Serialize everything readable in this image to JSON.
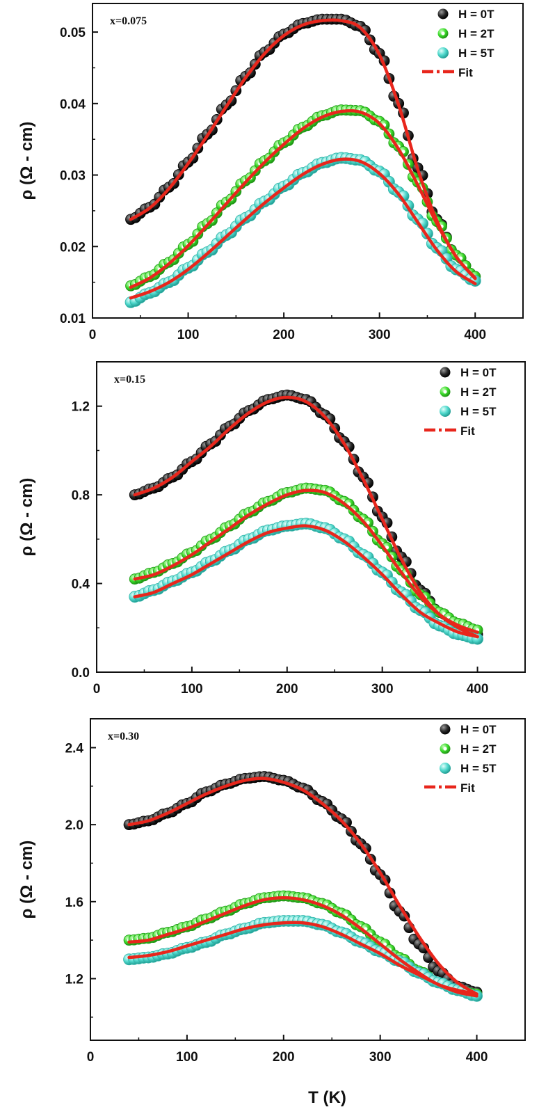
{
  "chart_data": [
    {
      "type": "scatter",
      "panel_label": "x=0.075",
      "ylabel": "ρ (Ω - cm)",
      "xlabel": "",
      "xlim": [
        0,
        450
      ],
      "ylim": [
        0.01,
        0.054
      ],
      "xticks": [
        "0",
        "100",
        "200",
        "300",
        "400"
      ],
      "xtick_values": [
        0,
        100,
        200,
        300,
        400
      ],
      "yticks": [
        "0.01",
        "0.02",
        "0.03",
        "0.04",
        "0.05"
      ],
      "ytick_values": [
        0.01,
        0.02,
        0.03,
        0.04,
        0.05
      ],
      "legend_position": "top-right",
      "series": [
        {
          "name": "H = 0T",
          "color": "#222222",
          "x": [
            40,
            60,
            80,
            100,
            120,
            140,
            160,
            180,
            200,
            220,
            240,
            260,
            280,
            300,
            320,
            340,
            360,
            380,
            400
          ],
          "y": [
            0.0238,
            0.0255,
            0.0283,
            0.0318,
            0.0357,
            0.0398,
            0.0438,
            0.0472,
            0.0497,
            0.0512,
            0.0518,
            0.0518,
            0.0508,
            0.047,
            0.04,
            0.031,
            0.0238,
            0.0188,
            0.0158
          ]
        },
        {
          "name": "H = 2T",
          "color": "#3ddc2c",
          "x": [
            40,
            60,
            80,
            100,
            120,
            140,
            160,
            180,
            200,
            220,
            240,
            260,
            280,
            300,
            320,
            340,
            360,
            380,
            400
          ],
          "y": [
            0.0145,
            0.0158,
            0.0178,
            0.0203,
            0.0232,
            0.0262,
            0.0292,
            0.032,
            0.0345,
            0.0367,
            0.0383,
            0.0391,
            0.039,
            0.0375,
            0.034,
            0.029,
            0.0235,
            0.0188,
            0.0158
          ]
        },
        {
          "name": "H = 5T",
          "color": "#4fd8cc",
          "x": [
            40,
            60,
            80,
            100,
            120,
            140,
            160,
            180,
            200,
            220,
            240,
            260,
            280,
            300,
            320,
            340,
            360,
            380,
            400
          ],
          "y": [
            0.0122,
            0.0135,
            0.015,
            0.017,
            0.0192,
            0.0216,
            0.024,
            0.0263,
            0.0284,
            0.0303,
            0.0317,
            0.0324,
            0.0321,
            0.0305,
            0.0276,
            0.0238,
            0.0198,
            0.0168,
            0.0152
          ]
        },
        {
          "name": "Fit",
          "color": "#e8261c",
          "line": true,
          "x": [
            40,
            60,
            80,
            100,
            120,
            140,
            160,
            180,
            200,
            220,
            240,
            260,
            280,
            300,
            320,
            340,
            360,
            380,
            400
          ],
          "y": [
            0.0238,
            0.0254,
            0.0281,
            0.0316,
            0.0355,
            0.0396,
            0.0436,
            0.047,
            0.0495,
            0.051,
            0.0516,
            0.0516,
            0.0506,
            0.0468,
            0.0398,
            0.0308,
            0.0236,
            0.0186,
            0.0156
          ]
        },
        {
          "name": "Fit (2T)",
          "color": "#e8261c",
          "line": true,
          "hidden_legend": true,
          "x": [
            40,
            60,
            80,
            100,
            120,
            140,
            160,
            180,
            200,
            220,
            240,
            260,
            280,
            300,
            320,
            340,
            360,
            380,
            400
          ],
          "y": [
            0.0143,
            0.0156,
            0.0176,
            0.0201,
            0.023,
            0.026,
            0.029,
            0.0318,
            0.0343,
            0.0365,
            0.0381,
            0.0389,
            0.0388,
            0.0372,
            0.0336,
            0.0286,
            0.0232,
            0.0186,
            0.0155
          ]
        },
        {
          "name": "Fit (5T)",
          "color": "#e8261c",
          "line": true,
          "hidden_legend": true,
          "x": [
            40,
            60,
            80,
            100,
            120,
            140,
            160,
            180,
            200,
            220,
            240,
            260,
            280,
            300,
            320,
            340,
            360,
            380,
            400
          ],
          "y": [
            0.0128,
            0.0137,
            0.015,
            0.0168,
            0.019,
            0.0214,
            0.0238,
            0.0261,
            0.0282,
            0.0301,
            0.0315,
            0.0322,
            0.0319,
            0.0302,
            0.0273,
            0.0234,
            0.0195,
            0.0165,
            0.0148
          ]
        }
      ]
    },
    {
      "type": "scatter",
      "panel_label": "x=0.15",
      "ylabel": "ρ (Ω - cm)",
      "xlabel": "",
      "xlim": [
        0,
        450
      ],
      "ylim": [
        0.0,
        1.4
      ],
      "xticks": [
        "0",
        "100",
        "200",
        "300",
        "400"
      ],
      "xtick_values": [
        0,
        100,
        200,
        300,
        400
      ],
      "yticks": [
        "0.0",
        "0.4",
        "0.8",
        "1.2"
      ],
      "ytick_values": [
        0.0,
        0.4,
        0.8,
        1.2
      ],
      "legend_position": "top-right",
      "series": [
        {
          "name": "H = 0T",
          "color": "#222222",
          "x": [
            40,
            60,
            80,
            100,
            120,
            140,
            160,
            180,
            200,
            220,
            240,
            260,
            280,
            300,
            320,
            340,
            360,
            380,
            400
          ],
          "y": [
            0.8,
            0.83,
            0.88,
            0.95,
            1.03,
            1.11,
            1.18,
            1.23,
            1.25,
            1.23,
            1.16,
            1.04,
            0.88,
            0.7,
            0.52,
            0.37,
            0.27,
            0.21,
            0.17
          ]
        },
        {
          "name": "H = 2T",
          "color": "#3ddc2c",
          "x": [
            40,
            60,
            80,
            100,
            120,
            140,
            160,
            180,
            200,
            220,
            240,
            260,
            280,
            300,
            320,
            340,
            360,
            380,
            400
          ],
          "y": [
            0.42,
            0.45,
            0.49,
            0.54,
            0.6,
            0.66,
            0.72,
            0.77,
            0.81,
            0.83,
            0.82,
            0.77,
            0.69,
            0.58,
            0.46,
            0.35,
            0.27,
            0.22,
            0.19
          ]
        },
        {
          "name": "H = 5T",
          "color": "#4fd8cc",
          "x": [
            40,
            60,
            80,
            100,
            120,
            140,
            160,
            180,
            200,
            220,
            240,
            260,
            280,
            300,
            320,
            340,
            360,
            380,
            400
          ],
          "y": [
            0.34,
            0.37,
            0.41,
            0.45,
            0.5,
            0.55,
            0.6,
            0.64,
            0.66,
            0.67,
            0.65,
            0.6,
            0.53,
            0.45,
            0.36,
            0.28,
            0.21,
            0.17,
            0.15
          ]
        },
        {
          "name": "Fit",
          "color": "#e8261c",
          "line": true,
          "x": [
            40,
            60,
            80,
            100,
            120,
            140,
            160,
            180,
            200,
            220,
            240,
            260,
            280,
            300,
            320,
            340,
            360,
            380,
            400
          ],
          "y": [
            0.8,
            0.83,
            0.88,
            0.95,
            1.02,
            1.1,
            1.17,
            1.22,
            1.24,
            1.22,
            1.15,
            1.03,
            0.87,
            0.69,
            0.51,
            0.36,
            0.26,
            0.2,
            0.16
          ]
        },
        {
          "name": "Fit (2T)",
          "color": "#e8261c",
          "line": true,
          "hidden_legend": true,
          "x": [
            40,
            60,
            80,
            100,
            120,
            140,
            160,
            180,
            200,
            220,
            240,
            260,
            280,
            300,
            320,
            340,
            360,
            380,
            400
          ],
          "y": [
            0.42,
            0.44,
            0.48,
            0.53,
            0.59,
            0.65,
            0.71,
            0.76,
            0.8,
            0.82,
            0.81,
            0.76,
            0.68,
            0.57,
            0.45,
            0.34,
            0.26,
            0.21,
            0.18
          ]
        },
        {
          "name": "Fit (5T)",
          "color": "#e8261c",
          "line": true,
          "hidden_legend": true,
          "x": [
            40,
            60,
            80,
            100,
            120,
            140,
            160,
            180,
            200,
            220,
            240,
            260,
            280,
            300,
            320,
            340,
            360,
            380,
            400
          ],
          "y": [
            0.34,
            0.36,
            0.4,
            0.44,
            0.49,
            0.54,
            0.59,
            0.63,
            0.65,
            0.66,
            0.64,
            0.59,
            0.52,
            0.44,
            0.35,
            0.27,
            0.22,
            0.18,
            0.16
          ]
        }
      ]
    },
    {
      "type": "scatter",
      "panel_label": "x=0.30",
      "ylabel": "ρ (Ω - cm)",
      "xlabel": "T (K)",
      "xlim": [
        0,
        450
      ],
      "ylim": [
        0.88,
        2.55
      ],
      "xticks": [
        "0",
        "100",
        "200",
        "300",
        "400"
      ],
      "xtick_values": [
        0,
        100,
        200,
        300,
        400
      ],
      "yticks": [
        "1.2",
        "1.6",
        "2.0",
        "2.4"
      ],
      "ytick_values": [
        1.2,
        1.6,
        2.0,
        2.4
      ],
      "legend_position": "top-right",
      "series": [
        {
          "name": "H = 0T",
          "color": "#222222",
          "x": [
            40,
            60,
            80,
            100,
            120,
            140,
            160,
            180,
            200,
            220,
            240,
            260,
            280,
            300,
            320,
            340,
            360,
            380,
            400
          ],
          "y": [
            2.0,
            2.02,
            2.06,
            2.11,
            2.17,
            2.21,
            2.24,
            2.25,
            2.23,
            2.19,
            2.12,
            2.03,
            1.9,
            1.74,
            1.55,
            1.38,
            1.24,
            1.16,
            1.13
          ]
        },
        {
          "name": "H = 2T",
          "color": "#3ddc2c",
          "x": [
            40,
            60,
            80,
            100,
            120,
            140,
            160,
            180,
            200,
            220,
            240,
            260,
            280,
            300,
            320,
            340,
            360,
            380,
            400
          ],
          "y": [
            1.4,
            1.41,
            1.44,
            1.47,
            1.51,
            1.55,
            1.59,
            1.62,
            1.63,
            1.62,
            1.59,
            1.54,
            1.47,
            1.39,
            1.31,
            1.24,
            1.18,
            1.14,
            1.12
          ]
        },
        {
          "name": "H = 5T",
          "color": "#4fd8cc",
          "x": [
            40,
            60,
            80,
            100,
            120,
            140,
            160,
            180,
            200,
            220,
            240,
            260,
            280,
            300,
            320,
            340,
            360,
            380,
            400
          ],
          "y": [
            1.3,
            1.31,
            1.33,
            1.36,
            1.39,
            1.43,
            1.46,
            1.49,
            1.5,
            1.5,
            1.48,
            1.44,
            1.39,
            1.34,
            1.29,
            1.23,
            1.18,
            1.14,
            1.11
          ]
        },
        {
          "name": "Fit",
          "color": "#e8261c",
          "line": true,
          "x": [
            40,
            60,
            80,
            100,
            120,
            140,
            160,
            180,
            200,
            220,
            240,
            260,
            280,
            300,
            320,
            340,
            360,
            380,
            400
          ],
          "y": [
            2.0,
            2.02,
            2.06,
            2.11,
            2.16,
            2.2,
            2.23,
            2.24,
            2.22,
            2.18,
            2.11,
            2.02,
            1.9,
            1.75,
            1.58,
            1.42,
            1.28,
            1.18,
            1.12
          ]
        },
        {
          "name": "Fit (2T)",
          "color": "#e8261c",
          "line": true,
          "hidden_legend": true,
          "x": [
            40,
            60,
            80,
            100,
            120,
            140,
            160,
            180,
            200,
            220,
            240,
            260,
            280,
            300,
            320,
            340,
            360,
            380,
            400
          ],
          "y": [
            1.39,
            1.4,
            1.43,
            1.46,
            1.5,
            1.54,
            1.58,
            1.61,
            1.62,
            1.61,
            1.58,
            1.53,
            1.46,
            1.38,
            1.3,
            1.23,
            1.17,
            1.14,
            1.12
          ]
        },
        {
          "name": "Fit (5T)",
          "color": "#e8261c",
          "line": true,
          "hidden_legend": true,
          "x": [
            40,
            60,
            80,
            100,
            120,
            140,
            160,
            180,
            200,
            220,
            240,
            260,
            280,
            300,
            320,
            340,
            360,
            380,
            400
          ],
          "y": [
            1.31,
            1.32,
            1.34,
            1.37,
            1.4,
            1.43,
            1.46,
            1.48,
            1.49,
            1.49,
            1.47,
            1.43,
            1.38,
            1.33,
            1.27,
            1.22,
            1.17,
            1.13,
            1.11
          ]
        }
      ]
    }
  ]
}
